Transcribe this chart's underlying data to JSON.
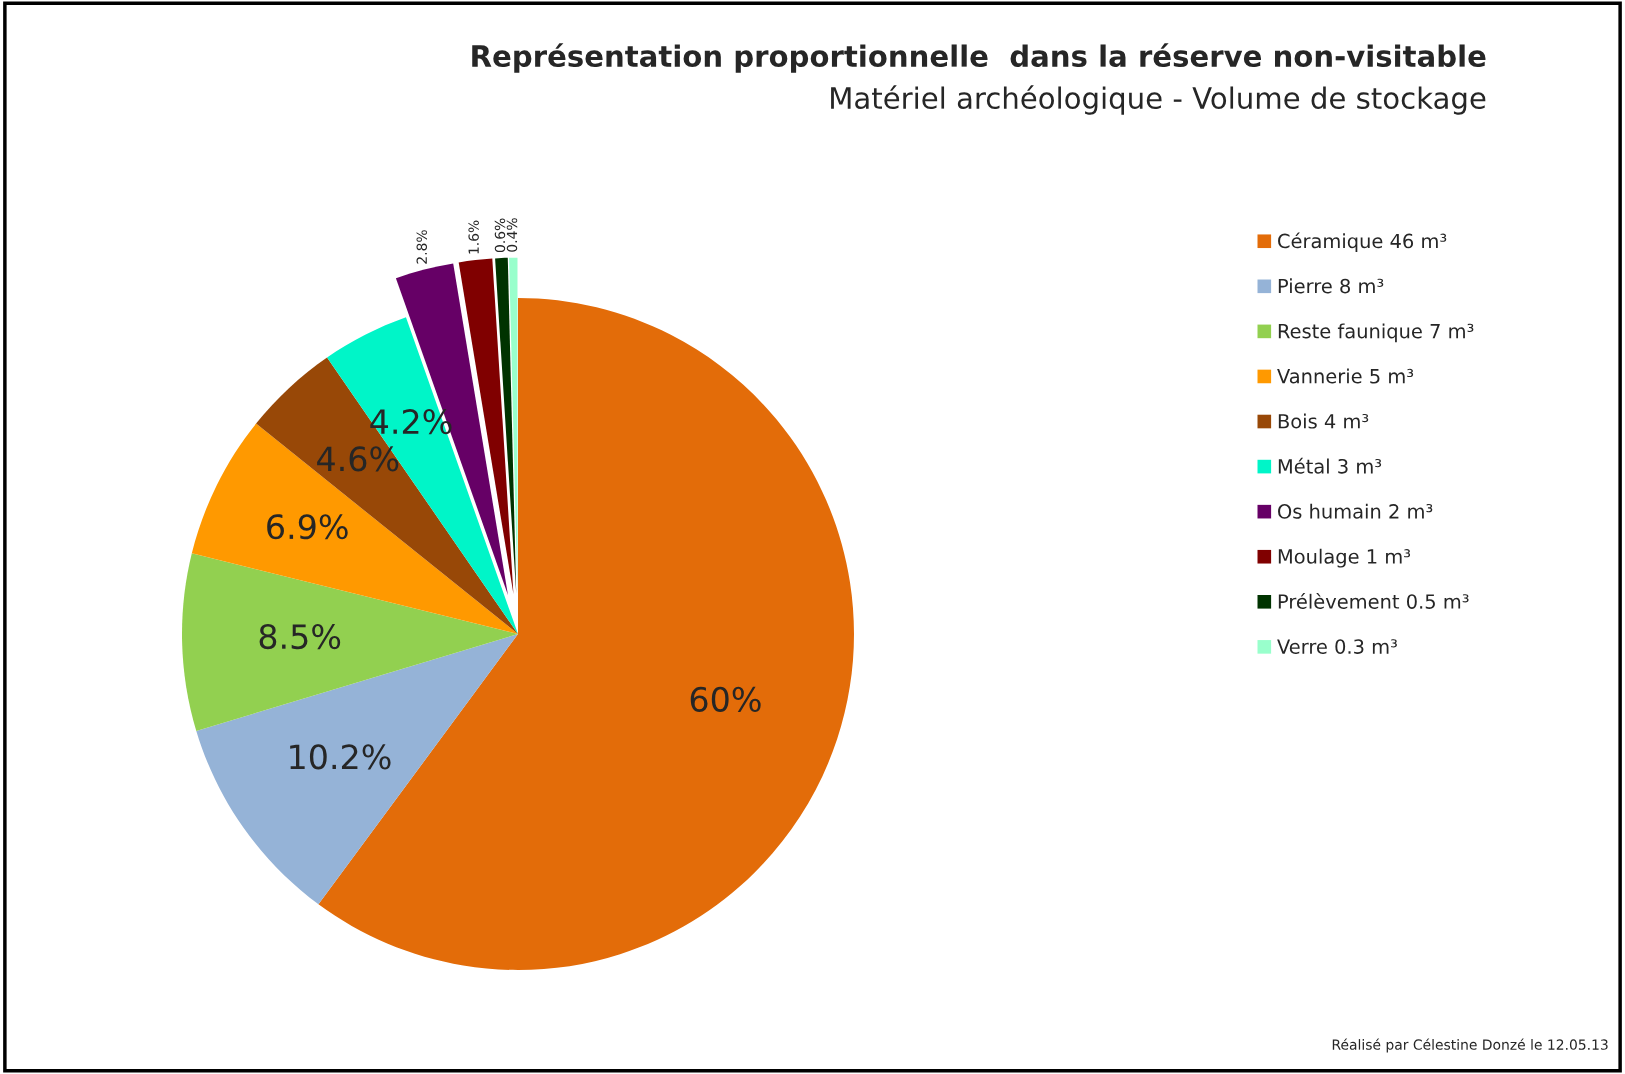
{
  "chart_data": {
    "type": "pie",
    "title": "Représentation proportionnelle  dans la réserve non-visitable",
    "subtitle": "Matériel archéologique - Volume de stockage",
    "categories": [
      "Céramique 46 m³",
      "Pierre 8 m³",
      "Reste faunique 7 m³",
      "Vannerie 5 m³",
      "Bois 4 m³",
      "Métal 3 m³",
      "Os humain 2 m³",
      "Moulage 1 m³",
      "Prélèvement 0.5 m³",
      "Verre 0.3 m³"
    ],
    "values": [
      60,
      10.2,
      8.5,
      6.9,
      4.6,
      4.2,
      2.8,
      1.6,
      0.6,
      0.4
    ],
    "value_labels": [
      "60%",
      "10.2%",
      "8.5%",
      "6.9%",
      "4.6%",
      "4.2%",
      "2.8%",
      "1.6%",
      "0.6%",
      "0.4%"
    ],
    "colors": [
      "#e36c09",
      "#95b3d7",
      "#92d050",
      "#ff9900",
      "#984807",
      "#00f5c8",
      "#660066",
      "#800000",
      "#003300",
      "#99ffcc"
    ],
    "legend": "right",
    "annotations": [
      "Réalisé par Célestine Donzé le 12.05.13"
    ]
  }
}
